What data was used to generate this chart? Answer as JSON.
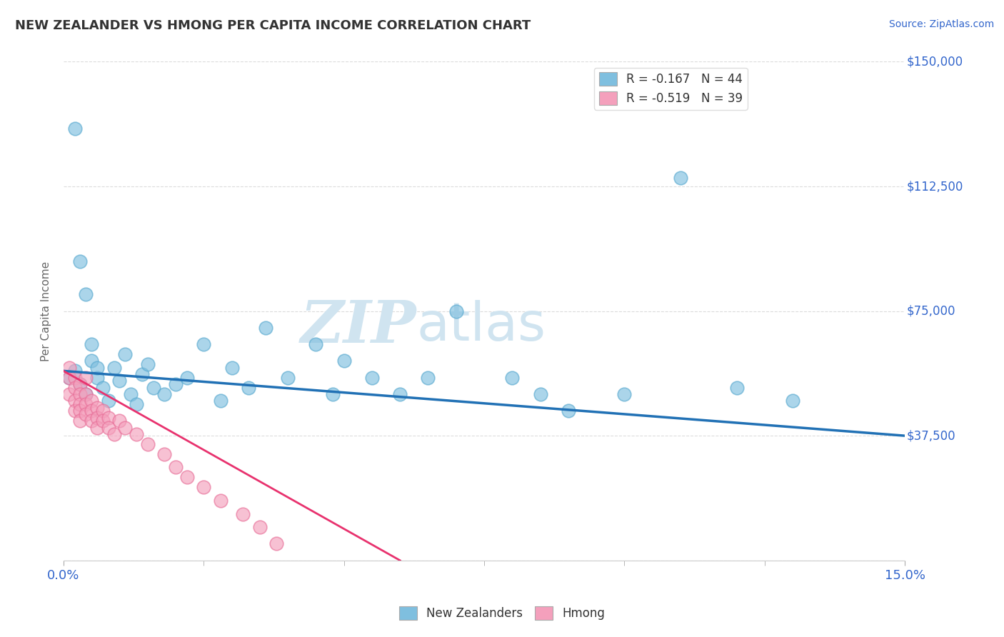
{
  "title": "NEW ZEALANDER VS HMONG PER CAPITA INCOME CORRELATION CHART",
  "source": "Source: ZipAtlas.com",
  "ylabel": "Per Capita Income",
  "xlim": [
    0.0,
    0.15
  ],
  "ylim": [
    0,
    150000
  ],
  "yticks": [
    0,
    37500,
    75000,
    112500,
    150000
  ],
  "ytick_labels": [
    "",
    "$37,500",
    "$75,000",
    "$112,500",
    "$150,000"
  ],
  "legend1_label": "R = -0.167   N = 44",
  "legend2_label": "R = -0.519   N = 39",
  "nz_color": "#7fbfdf",
  "hmong_color": "#f4a0bc",
  "nz_edge_color": "#5aaad0",
  "hmong_edge_color": "#e87099",
  "nz_line_color": "#2171b5",
  "hmong_line_color": "#e8326e",
  "watermark_color": "#d0e4f0",
  "background_color": "#ffffff",
  "grid_color": "#cccccc",
  "label_color": "#3366cc",
  "nz_scatter_x": [
    0.001,
    0.002,
    0.003,
    0.004,
    0.005,
    0.006,
    0.007,
    0.008,
    0.009,
    0.01,
    0.011,
    0.012,
    0.013,
    0.014,
    0.015,
    0.016,
    0.018,
    0.02,
    0.022,
    0.025,
    0.028,
    0.03,
    0.033,
    0.036,
    0.04,
    0.045,
    0.048,
    0.05,
    0.055,
    0.06,
    0.065,
    0.07,
    0.08,
    0.085,
    0.09,
    0.1,
    0.11,
    0.12,
    0.13,
    0.002,
    0.003,
    0.004,
    0.005,
    0.006
  ],
  "nz_scatter_y": [
    55000,
    57000,
    53000,
    50000,
    60000,
    55000,
    52000,
    48000,
    58000,
    54000,
    62000,
    50000,
    47000,
    56000,
    59000,
    52000,
    50000,
    53000,
    55000,
    65000,
    48000,
    58000,
    52000,
    70000,
    55000,
    65000,
    50000,
    60000,
    55000,
    50000,
    55000,
    75000,
    55000,
    50000,
    45000,
    50000,
    115000,
    52000,
    48000,
    130000,
    90000,
    80000,
    65000,
    58000
  ],
  "hmong_scatter_x": [
    0.001,
    0.001,
    0.001,
    0.002,
    0.002,
    0.002,
    0.002,
    0.003,
    0.003,
    0.003,
    0.003,
    0.003,
    0.004,
    0.004,
    0.004,
    0.004,
    0.005,
    0.005,
    0.005,
    0.006,
    0.006,
    0.006,
    0.007,
    0.007,
    0.008,
    0.008,
    0.009,
    0.01,
    0.011,
    0.013,
    0.015,
    0.018,
    0.02,
    0.022,
    0.025,
    0.028,
    0.032,
    0.035,
    0.038
  ],
  "hmong_scatter_y": [
    58000,
    55000,
    50000,
    55000,
    52000,
    48000,
    45000,
    53000,
    50000,
    47000,
    45000,
    42000,
    50000,
    47000,
    44000,
    55000,
    48000,
    45000,
    42000,
    46000,
    43000,
    40000,
    45000,
    42000,
    43000,
    40000,
    38000,
    42000,
    40000,
    38000,
    35000,
    32000,
    28000,
    25000,
    22000,
    18000,
    14000,
    10000,
    5000
  ],
  "nz_trendline_x": [
    0.0,
    0.15
  ],
  "nz_trendline_y": [
    57000,
    37500
  ],
  "hmong_trendline_x": [
    0.0,
    0.06
  ],
  "hmong_trendline_y": [
    57000,
    0
  ]
}
